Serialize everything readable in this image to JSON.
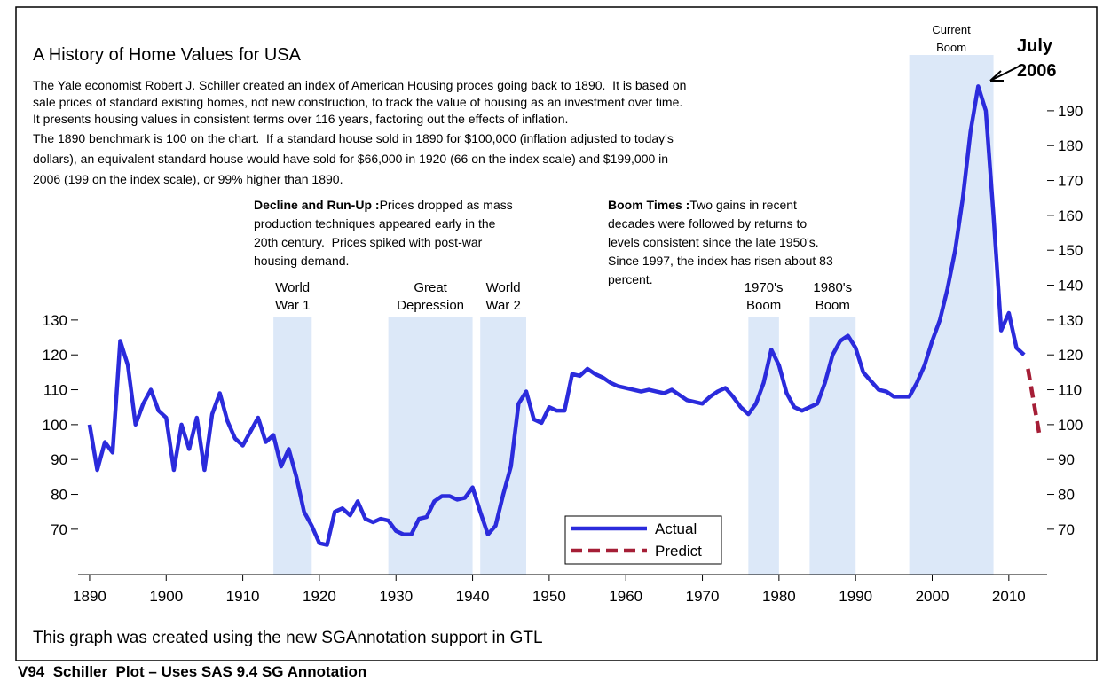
{
  "chart_data": {
    "type": "line",
    "title": "A History of Home Values for USA",
    "description": [
      [
        "The Yale economist Robert J. Schiller created an index of American Housing proces going back to 1890.  It is based on",
        "sale prices of standard existing homes, not new construction, to track the value of housing as an investment over time.",
        "It presents housing values in consistent terms over 116 years, factoring out the effects of inflation."
      ],
      [
        "The 1890 benchmark is 100 on the chart.  If a standard house sold in 1890 for $100,000 (inflation adjusted to today's",
        "dollars), an equivalent standard house would have sold for $66,000 in 1920 (66 on the index scale) and $199,000 in",
        "2006 (199 on the index scale), or 99% higher than 1890."
      ]
    ],
    "notes": [
      {
        "heading": "Decline and Run-Up :",
        "lines": [
          "Prices dropped as mass",
          "production techniques appeared early in the",
          "20th century.  Prices spiked with post-war",
          "housing demand."
        ]
      },
      {
        "heading": "Boom Times :",
        "lines": [
          "Two gains in recent",
          "decades were followed by returns to",
          "levels consistent since the late 1950's.",
          "Since 1997, the index has risen about 83",
          "percent."
        ]
      }
    ],
    "bands": [
      {
        "x": [
          1914,
          1919
        ],
        "label": [
          "World",
          "War 1"
        ]
      },
      {
        "x": [
          1929,
          1940
        ],
        "label": [
          "Great",
          "Depression"
        ]
      },
      {
        "x": [
          1941,
          1947
        ],
        "label": [
          "World",
          "War 2"
        ]
      },
      {
        "x": [
          1976,
          1980
        ],
        "label": [
          "1970's",
          "Boom"
        ]
      },
      {
        "x": [
          1984,
          1990
        ],
        "label": [
          "1980's",
          "Boom"
        ]
      },
      {
        "x": [
          1997,
          2008
        ],
        "label": [
          "Current",
          "Boom"
        ]
      }
    ],
    "peak_label": [
      "July",
      "2006"
    ],
    "footnote": "This graph was created using the new SGAnnotation support in GTL",
    "caption": "V94  Schiller  Plot – Uses SAS 9.4 SG Annotation",
    "series": [
      {
        "name": "Actual",
        "color": "#2b2bdc",
        "x": [
          1890,
          1891,
          1892,
          1893,
          1894,
          1895,
          1896,
          1897,
          1898,
          1899,
          1900,
          1901,
          1902,
          1903,
          1904,
          1905,
          1906,
          1907,
          1908,
          1909,
          1910,
          1911,
          1912,
          1913,
          1914,
          1915,
          1916,
          1917,
          1918,
          1919,
          1920,
          1921,
          1922,
          1923,
          1924,
          1925,
          1926,
          1927,
          1928,
          1929,
          1930,
          1931,
          1932,
          1933,
          1934,
          1935,
          1936,
          1937,
          1938,
          1939,
          1940,
          1941,
          1942,
          1943,
          1944,
          1945,
          1946,
          1947,
          1948,
          1949,
          1950,
          1951,
          1952,
          1953,
          1954,
          1955,
          1956,
          1957,
          1958,
          1959,
          1960,
          1961,
          1962,
          1963,
          1964,
          1965,
          1966,
          1967,
          1968,
          1969,
          1970,
          1971,
          1972,
          1973,
          1974,
          1975,
          1976,
          1977,
          1978,
          1979,
          1980,
          1981,
          1982,
          1983,
          1984,
          1985,
          1986,
          1987,
          1988,
          1989,
          1990,
          1991,
          1992,
          1993,
          1994,
          1995,
          1996,
          1997,
          1998,
          1999,
          2000,
          2001,
          2002,
          2003,
          2004,
          2005,
          2006,
          2007,
          2008,
          2009,
          2010,
          2011,
          2012
        ],
        "values": [
          100,
          87,
          95,
          92,
          124,
          117,
          100,
          106,
          110,
          104,
          102,
          87,
          100,
          93,
          102,
          87,
          103,
          109,
          101,
          96,
          94,
          98,
          102,
          95,
          97,
          88,
          93,
          85,
          75,
          71,
          66,
          65.5,
          75,
          76,
          74,
          78,
          73,
          72,
          73,
          72.5,
          69.5,
          68.5,
          68.5,
          73,
          73.5,
          78,
          79.5,
          79.5,
          78.5,
          79,
          82,
          75,
          68.5,
          71,
          80,
          88,
          106,
          109.5,
          101.5,
          100.5,
          105,
          104,
          104,
          114.5,
          114,
          116,
          114.5,
          113.5,
          112,
          111,
          110.5,
          110,
          109.5,
          110,
          109.5,
          109,
          110,
          108.5,
          107,
          106.5,
          106,
          108,
          109.5,
          110.5,
          108,
          105,
          103,
          106,
          112,
          121.5,
          117,
          109,
          105,
          104,
          105,
          106,
          112,
          120,
          124,
          125.5,
          122,
          115,
          112.5,
          110,
          109.5,
          108,
          108,
          108,
          112,
          117,
          124,
          130,
          139,
          150,
          165,
          184,
          197,
          190,
          160,
          127,
          132,
          122,
          120
        ]
      },
      {
        "name": "Predict",
        "color": "#a51e36",
        "dash": true,
        "x": [
          2012.5,
          2014
        ],
        "values": [
          116,
          97
        ]
      }
    ],
    "xlim": [
      1888.5,
      2015
    ],
    "xticks": [
      1890,
      1900,
      1910,
      1920,
      1930,
      1940,
      1950,
      1960,
      1970,
      1980,
      1990,
      2000,
      2010
    ],
    "ylim": [
      57,
      218.7
    ],
    "yticks": [
      70,
      80,
      90,
      100,
      110,
      120,
      130
    ],
    "y2lim": [
      57,
      218.7
    ],
    "y2ticks": [
      70,
      80,
      90,
      100,
      110,
      120,
      130,
      140,
      150,
      160,
      170,
      180,
      190
    ],
    "band_color": "#dce8f8"
  }
}
